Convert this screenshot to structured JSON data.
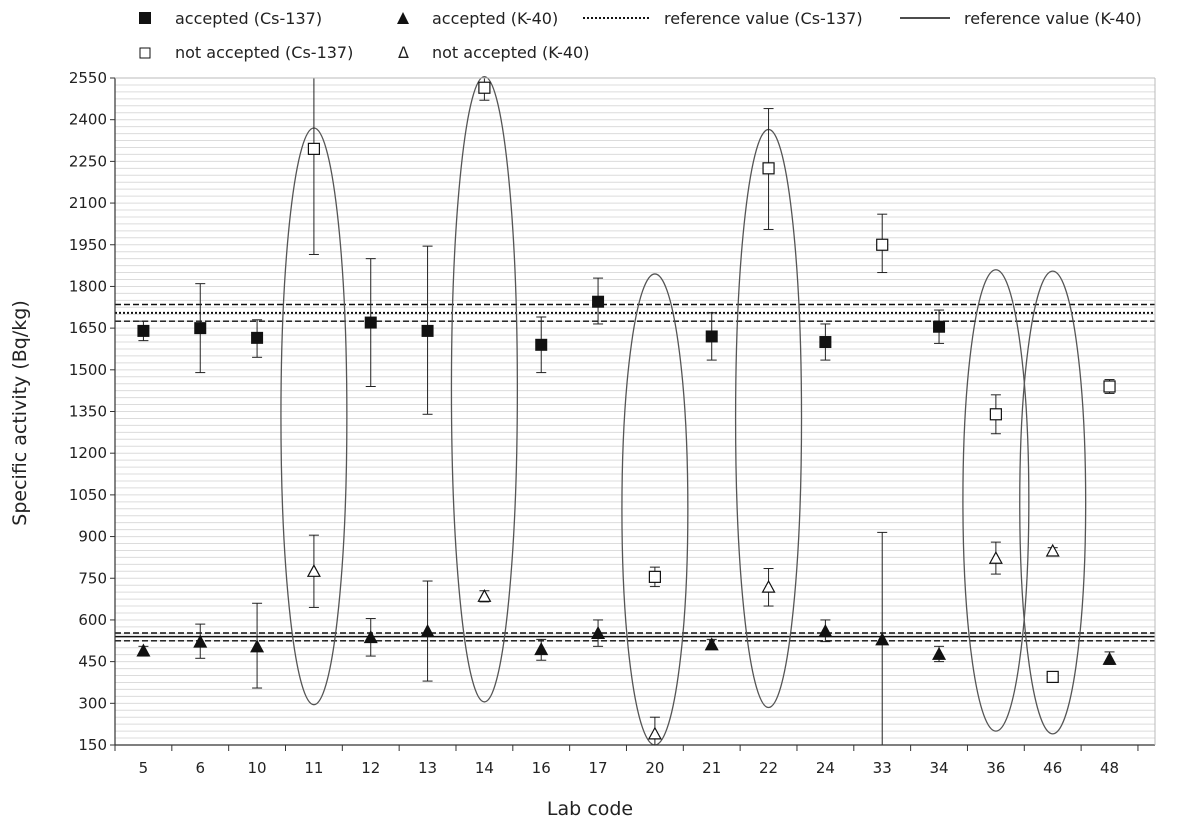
{
  "chart_data": {
    "type": "scatter",
    "title": "",
    "xlabel": "Lab code",
    "ylabel": "Specific activity (Bq/kg)",
    "categories": [
      "5",
      "6",
      "10",
      "11",
      "12",
      "13",
      "14",
      "16",
      "17",
      "20",
      "21",
      "22",
      "24",
      "33",
      "34",
      "36",
      "46",
      "48"
    ],
    "ylim": [
      150,
      2550
    ],
    "yticks": [
      150,
      300,
      450,
      600,
      750,
      900,
      1050,
      1200,
      1350,
      1500,
      1650,
      1800,
      1950,
      2100,
      2250,
      2400,
      2550
    ],
    "grid": true,
    "legend_position": "top",
    "legend": {
      "accepted_cs": "accepted (Cs-137)",
      "accepted_k": "accepted (K-40)",
      "ref_cs": "reference value (Cs-137)",
      "ref_k": "reference value (K-40)",
      "notacc_cs": "not accepted (Cs-137)",
      "notacc_k": "not accepted (K-40)",
      "notacc_k_glyph": "Δ"
    },
    "reference": {
      "cs137": {
        "value": 1705,
        "lower": 1675,
        "upper": 1735
      },
      "k40": {
        "value": 540,
        "lower": 525,
        "upper": 553
      }
    },
    "series": [
      {
        "name": "accepted (Cs-137)",
        "marker": "filled-square",
        "points": [
          {
            "x": "5",
            "y": 1640,
            "lo": 1605,
            "hi": 1675
          },
          {
            "x": "6",
            "y": 1650,
            "lo": 1490,
            "hi": 1810
          },
          {
            "x": "10",
            "y": 1615,
            "lo": 1545,
            "hi": 1680
          },
          {
            "x": "12",
            "y": 1670,
            "lo": 1440,
            "hi": 1900
          },
          {
            "x": "13",
            "y": 1640,
            "lo": 1340,
            "hi": 1945
          },
          {
            "x": "16",
            "y": 1590,
            "lo": 1490,
            "hi": 1690
          },
          {
            "x": "17",
            "y": 1745,
            "lo": 1665,
            "hi": 1830
          },
          {
            "x": "21",
            "y": 1620,
            "lo": 1535,
            "hi": 1705
          },
          {
            "x": "24",
            "y": 1600,
            "lo": 1535,
            "hi": 1665
          },
          {
            "x": "34",
            "y": 1655,
            "lo": 1595,
            "hi": 1715
          }
        ]
      },
      {
        "name": "accepted (K-40)",
        "marker": "filled-triangle",
        "points": [
          {
            "x": "5",
            "y": 490,
            "lo": 470,
            "hi": 505
          },
          {
            "x": "6",
            "y": 522,
            "lo": 462,
            "hi": 585
          },
          {
            "x": "10",
            "y": 505,
            "lo": 355,
            "hi": 660
          },
          {
            "x": "12",
            "y": 538,
            "lo": 470,
            "hi": 605
          },
          {
            "x": "13",
            "y": 560,
            "lo": 380,
            "hi": 740
          },
          {
            "x": "16",
            "y": 495,
            "lo": 455,
            "hi": 530
          },
          {
            "x": "17",
            "y": 553,
            "lo": 505,
            "hi": 600
          },
          {
            "x": "21",
            "y": 512,
            "lo": 495,
            "hi": 530
          },
          {
            "x": "24",
            "y": 560,
            "lo": 522,
            "hi": 600
          },
          {
            "x": "33",
            "y": 530,
            "lo": 150,
            "hi": 915
          },
          {
            "x": "34",
            "y": 478,
            "lo": 450,
            "hi": 505
          },
          {
            "x": "48",
            "y": 460,
            "lo": 440,
            "hi": 485
          }
        ]
      },
      {
        "name": "not accepted (Cs-137)",
        "marker": "open-square",
        "points": [
          {
            "x": "11",
            "y": 2295,
            "lo": 1915,
            "hi": 2550
          },
          {
            "x": "14",
            "y": 2515,
            "lo": 2470,
            "hi": 2550
          },
          {
            "x": "20",
            "y": 755,
            "lo": 720,
            "hi": 790
          },
          {
            "x": "22",
            "y": 2225,
            "lo": 2005,
            "hi": 2440
          },
          {
            "x": "33",
            "y": 1950,
            "lo": 1850,
            "hi": 2060
          },
          {
            "x": "36",
            "y": 1340,
            "lo": 1270,
            "hi": 1410
          },
          {
            "x": "46",
            "y": 395,
            "lo": 385,
            "hi": 405
          },
          {
            "x": "48",
            "y": 1440,
            "lo": 1415,
            "hi": 1465
          }
        ]
      },
      {
        "name": "not accepted (K-40)",
        "marker": "open-triangle",
        "points": [
          {
            "x": "11",
            "y": 775,
            "lo": 645,
            "hi": 905
          },
          {
            "x": "14",
            "y": 685,
            "lo": 665,
            "hi": 705
          },
          {
            "x": "20",
            "y": 190,
            "lo": 150,
            "hi": 250
          },
          {
            "x": "22",
            "y": 718,
            "lo": 650,
            "hi": 785
          },
          {
            "x": "36",
            "y": 822,
            "lo": 765,
            "hi": 880
          },
          {
            "x": "46",
            "y": 848,
            "lo": 835,
            "hi": 860
          }
        ]
      }
    ],
    "highlight_ellipses": [
      {
        "x": "11",
        "ymin": 295,
        "ymax": 2370
      },
      {
        "x": "14",
        "ymin": 305,
        "ymax": 2555
      },
      {
        "x": "20",
        "ymin": 150,
        "ymax": 1845
      },
      {
        "x": "22",
        "ymin": 285,
        "ymax": 2365
      },
      {
        "x": "36",
        "ymin": 200,
        "ymax": 1860
      },
      {
        "x": "46",
        "ymin": 190,
        "ymax": 1855
      }
    ]
  }
}
